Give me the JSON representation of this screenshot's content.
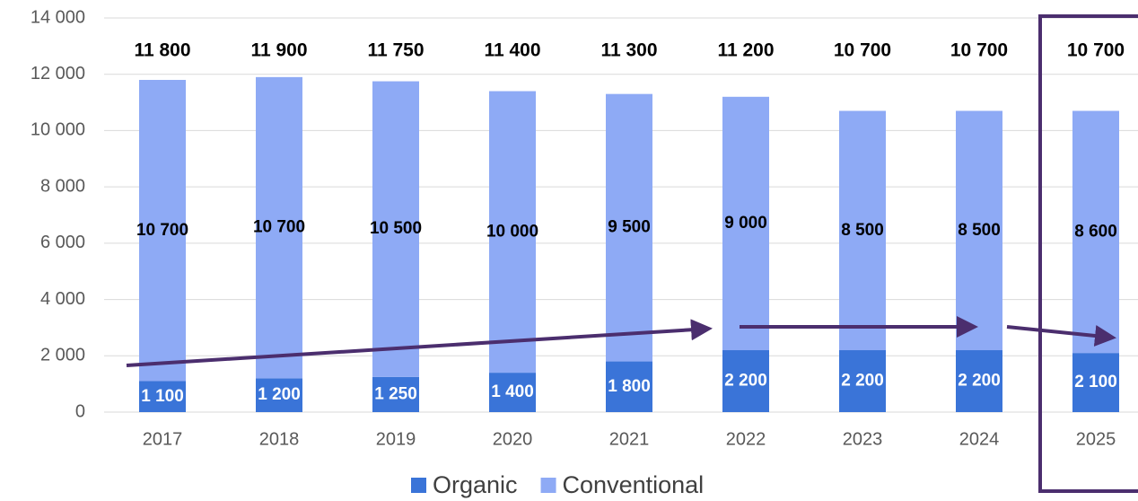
{
  "chart_data": {
    "type": "stacked-bar",
    "categories": [
      "2017",
      "2018",
      "2019",
      "2020",
      "2021",
      "2022",
      "2023",
      "2024",
      "2025"
    ],
    "series": [
      {
        "name": "Organic",
        "color": "#3a74d8",
        "label_color": "#ffffff",
        "values": [
          1100,
          1200,
          1250,
          1400,
          1800,
          2200,
          2200,
          2200,
          2100
        ],
        "value_labels": [
          "1 100",
          "1 200",
          "1 250",
          "1 400",
          "1 800",
          "2 200",
          "2 200",
          "2 200",
          "2 100"
        ]
      },
      {
        "name": "Conventional",
        "color": "#8eaaf5",
        "label_color": "#000000",
        "values": [
          10700,
          10700,
          10500,
          10000,
          9500,
          9000,
          8500,
          8500,
          8600
        ],
        "value_labels": [
          "10 700",
          "10 700",
          "10 500",
          "10 000",
          "9 500",
          "9 000",
          "8 500",
          "8 500",
          "8 600"
        ]
      }
    ],
    "total_values": [
      11800,
      11900,
      11750,
      11400,
      11300,
      11200,
      10700,
      10700,
      10700
    ],
    "total_labels": [
      "11 800",
      "11 900",
      "11 750",
      "11 400",
      "11 300",
      "11 200",
      "10 700",
      "10 700",
      "10 700"
    ],
    "ylim": [
      0,
      14000
    ],
    "yticks": [
      0,
      {
        "value": 2000,
        "label": "2 000"
      },
      {
        "value": 4000,
        "label": "4 000"
      },
      {
        "value": 6000,
        "label": "6 000"
      },
      {
        "value": 8000,
        "label": "8 000"
      },
      {
        "value": 10000,
        "label": "10 000"
      },
      {
        "value": 12000,
        "label": "12 000"
      },
      {
        "value": 14000,
        "label": "14 000"
      }
    ],
    "grid": true,
    "legend": "bottom"
  }
}
